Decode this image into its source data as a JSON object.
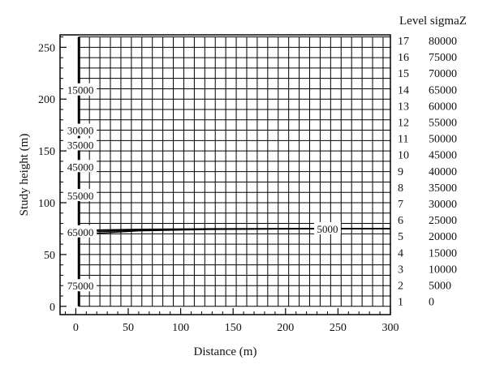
{
  "chart_data": {
    "type": "line",
    "title": "",
    "xlabel": "Distance (m)",
    "ylabel": "Study height (m)",
    "xlim": [
      -15,
      300
    ],
    "ylim": [
      -8,
      262
    ],
    "x_ticks": [
      0,
      50,
      100,
      150,
      200,
      250,
      300
    ],
    "y_ticks": [
      0,
      50,
      100,
      150,
      200,
      250
    ],
    "grid": true,
    "grid_x_step": 10,
    "grid_y_step": 10,
    "contour_labels": [
      {
        "text": "15000",
        "x": 6,
        "y": 209
      },
      {
        "text": "30000",
        "x": 6,
        "y": 170
      },
      {
        "text": "35000",
        "x": 6,
        "y": 156
      },
      {
        "text": "45000",
        "x": 6,
        "y": 135
      },
      {
        "text": "55000",
        "x": 6,
        "y": 107
      },
      {
        "text": "65000",
        "x": 6,
        "y": 72
      },
      {
        "text": "75000",
        "x": 6,
        "y": 20
      },
      {
        "text": "5000",
        "x": 240,
        "y": 75
      }
    ],
    "series": [
      {
        "x": [
          3,
          3
        ],
        "y": [
          0,
          260
        ]
      },
      {
        "x": [
          0,
          20,
          60,
          120,
          200,
          300
        ],
        "y": [
          73,
          73.5,
          74.2,
          74.6,
          74.9,
          75
        ]
      },
      {
        "x": [
          20,
          60,
          120,
          200,
          300
        ],
        "y": [
          72,
          73.4,
          74.3,
          74.8,
          75
        ]
      },
      {
        "x": [
          20,
          60,
          120,
          200,
          300
        ],
        "y": [
          70.5,
          72.8,
          74.0,
          74.7,
          75
        ]
      }
    ],
    "legend": {
      "title": "Level sigmaZ",
      "position": "right",
      "entries": [
        {
          "level": "17",
          "value": "80000"
        },
        {
          "level": "16",
          "value": "75000"
        },
        {
          "level": "15",
          "value": "70000"
        },
        {
          "level": "14",
          "value": "65000"
        },
        {
          "level": "13",
          "value": "60000"
        },
        {
          "level": "12",
          "value": "55000"
        },
        {
          "level": "11",
          "value": "50000"
        },
        {
          "level": "10",
          "value": "45000"
        },
        {
          "level": "9",
          "value": "40000"
        },
        {
          "level": "8",
          "value": "35000"
        },
        {
          "level": "7",
          "value": "30000"
        },
        {
          "level": "6",
          "value": "25000"
        },
        {
          "level": "5",
          "value": "20000"
        },
        {
          "level": "4",
          "value": "15000"
        },
        {
          "level": "3",
          "value": "10000"
        },
        {
          "level": "2",
          "value": "5000"
        },
        {
          "level": "1",
          "value": "0"
        }
      ]
    }
  }
}
